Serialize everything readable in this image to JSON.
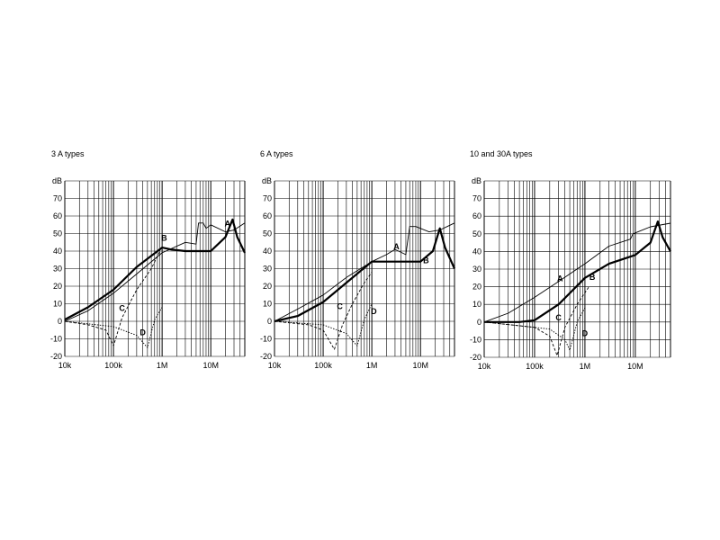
{
  "chart_data": [
    {
      "type": "line",
      "title": "3 A types",
      "xscale": "log",
      "xlim": [
        10000,
        50000000
      ],
      "ylim": [
        -20,
        80
      ],
      "ylabel": "dB",
      "yticks": [
        "70",
        "60",
        "50",
        "40",
        "30",
        "20",
        "10",
        "0",
        "-10",
        "-20"
      ],
      "xticks": [
        {
          "value": 10000,
          "label": "10k"
        },
        {
          "value": 100000,
          "label": "100k"
        },
        {
          "value": 1000000,
          "label": "1M"
        },
        {
          "value": 10000000,
          "label": "10M"
        }
      ],
      "grid": true,
      "series": [
        {
          "name": "A",
          "style": "thin",
          "label_at": [
            22000000,
            54
          ],
          "points": [
            [
              10000,
              0
            ],
            [
              30000,
              6
            ],
            [
              100000,
              16
            ],
            [
              300000,
              27
            ],
            [
              1000000,
              39
            ],
            [
              3000000,
              45
            ],
            [
              5000000,
              44
            ],
            [
              5600000,
              56
            ],
            [
              7000000,
              56
            ],
            [
              8000000,
              53
            ],
            [
              10000000,
              55
            ],
            [
              20000000,
              51
            ],
            [
              30000000,
              52
            ],
            [
              50000000,
              56
            ]
          ]
        },
        {
          "name": "B",
          "style": "bold",
          "label_at": [
            1100000,
            46
          ],
          "points": [
            [
              10000,
              1
            ],
            [
              30000,
              8
            ],
            [
              100000,
              18
            ],
            [
              300000,
              31
            ],
            [
              1000000,
              42
            ],
            [
              1500000,
              41
            ],
            [
              3000000,
              40
            ],
            [
              10000000,
              40
            ],
            [
              20000000,
              48
            ],
            [
              28000000,
              58
            ],
            [
              35000000,
              48
            ],
            [
              50000000,
              39
            ]
          ]
        },
        {
          "name": "C",
          "style": "dashed",
          "label_at": [
            150000,
            6
          ],
          "points": [
            [
              10000,
              0
            ],
            [
              30000,
              -2
            ],
            [
              70000,
              -5
            ],
            [
              100000,
              -14
            ],
            [
              150000,
              2
            ],
            [
              300000,
              18
            ],
            [
              600000,
              30
            ],
            [
              900000,
              40
            ]
          ]
        },
        {
          "name": "D",
          "style": "dotted",
          "label_at": [
            400000,
            -8
          ],
          "points": [
            [
              10000,
              0
            ],
            [
              100000,
              -3
            ],
            [
              300000,
              -8
            ],
            [
              500000,
              -15
            ],
            [
              700000,
              1
            ],
            [
              1000000,
              8
            ]
          ]
        }
      ]
    },
    {
      "type": "line",
      "title": "6 A types",
      "xscale": "log",
      "xlim": [
        10000,
        50000000
      ],
      "ylim": [
        -20,
        80
      ],
      "ylabel": "dB",
      "yticks": [
        "70",
        "60",
        "50",
        "40",
        "30",
        "20",
        "10",
        "0",
        "-10",
        "-20"
      ],
      "xticks": [
        {
          "value": 10000,
          "label": "10k"
        },
        {
          "value": 100000,
          "label": "100k"
        },
        {
          "value": 1000000,
          "label": "1M"
        },
        {
          "value": 10000000,
          "label": "10M"
        }
      ],
      "grid": true,
      "series": [
        {
          "name": "A",
          "style": "thin",
          "label_at": [
            3200000,
            41
          ],
          "points": [
            [
              10000,
              0
            ],
            [
              30000,
              7
            ],
            [
              100000,
              15
            ],
            [
              300000,
              25
            ],
            [
              1000000,
              34
            ],
            [
              2000000,
              38
            ],
            [
              3000000,
              41
            ],
            [
              5000000,
              38
            ],
            [
              6000000,
              54
            ],
            [
              8000000,
              54
            ],
            [
              15000000,
              51
            ],
            [
              25000000,
              52
            ],
            [
              50000000,
              56
            ]
          ]
        },
        {
          "name": "B",
          "style": "bold",
          "label_at": [
            13000000,
            33
          ],
          "points": [
            [
              10000,
              0
            ],
            [
              30000,
              3
            ],
            [
              100000,
              11
            ],
            [
              300000,
              22
            ],
            [
              1000000,
              34
            ],
            [
              2000000,
              34
            ],
            [
              10000000,
              34
            ],
            [
              18000000,
              40
            ],
            [
              25000000,
              53
            ],
            [
              32000000,
              42
            ],
            [
              50000000,
              30
            ]
          ]
        },
        {
          "name": "C",
          "style": "dashed",
          "label_at": [
            220000,
            7
          ],
          "points": [
            [
              10000,
              0
            ],
            [
              50000,
              -2
            ],
            [
              100000,
              -5
            ],
            [
              170000,
              -16
            ],
            [
              250000,
              -2
            ],
            [
              400000,
              10
            ],
            [
              700000,
              22
            ],
            [
              1000000,
              28
            ]
          ]
        },
        {
          "name": "D",
          "style": "dotted",
          "label_at": [
            1100000,
            4
          ],
          "points": [
            [
              10000,
              0
            ],
            [
              100000,
              -2
            ],
            [
              300000,
              -7
            ],
            [
              500000,
              -14
            ],
            [
              700000,
              1
            ],
            [
              1000000,
              10
            ]
          ]
        }
      ]
    },
    {
      "type": "line",
      "title": "10 and 30A types",
      "xscale": "log",
      "xlim": [
        10000,
        50000000
      ],
      "ylim": [
        -20,
        80
      ],
      "ylabel": "dB",
      "yticks": [
        "70",
        "60",
        "50",
        "40",
        "30",
        "20",
        "10",
        "0",
        "-10",
        "-20"
      ],
      "xticks": [
        {
          "value": 10000,
          "label": "10k"
        },
        {
          "value": 100000,
          "label": "100k"
        },
        {
          "value": 1000000,
          "label": "1M"
        },
        {
          "value": 10000000,
          "label": "10M"
        }
      ],
      "grid": true,
      "series": [
        {
          "name": "A",
          "style": "thin",
          "label_at": [
            320000,
            23
          ],
          "points": [
            [
              10000,
              0
            ],
            [
              30000,
              5
            ],
            [
              100000,
              14
            ],
            [
              300000,
              23
            ],
            [
              1000000,
              33
            ],
            [
              3000000,
              43
            ],
            [
              8000000,
              47
            ],
            [
              9000000,
              50
            ],
            [
              20000000,
              54
            ],
            [
              50000000,
              56
            ]
          ]
        },
        {
          "name": "B",
          "style": "bold",
          "label_at": [
            1400000,
            24
          ],
          "points": [
            [
              10000,
              0
            ],
            [
              50000,
              0
            ],
            [
              100000,
              1
            ],
            [
              300000,
              10
            ],
            [
              1000000,
              25
            ],
            [
              3000000,
              33
            ],
            [
              10000000,
              38
            ],
            [
              20000000,
              45
            ],
            [
              28000000,
              57
            ],
            [
              35000000,
              48
            ],
            [
              50000000,
              40
            ]
          ]
        },
        {
          "name": "C",
          "style": "dashed",
          "label_at": [
            300000,
            1
          ],
          "points": [
            [
              10000,
              0
            ],
            [
              100000,
              -3
            ],
            [
              200000,
              -8
            ],
            [
              280000,
              -19
            ],
            [
              400000,
              -3
            ],
            [
              700000,
              10
            ],
            [
              1200000,
              20
            ]
          ]
        },
        {
          "name": "D",
          "style": "dotted",
          "label_at": [
            1000000,
            -8
          ],
          "points": [
            [
              10000,
              0
            ],
            [
              200000,
              -4
            ],
            [
              400000,
              -10
            ],
            [
              500000,
              -16
            ],
            [
              700000,
              0
            ],
            [
              1000000,
              8
            ]
          ]
        }
      ]
    }
  ]
}
